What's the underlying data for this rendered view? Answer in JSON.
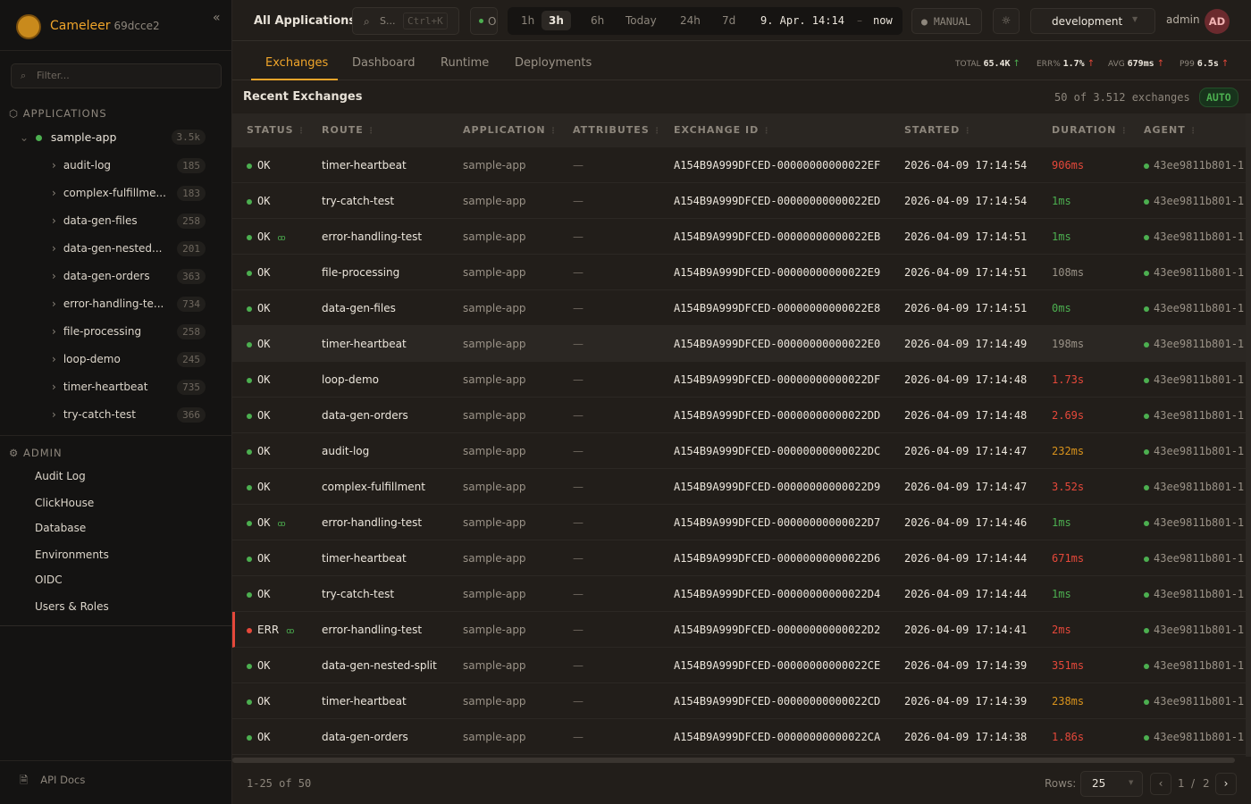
{
  "brand": {
    "name": "Cameleer",
    "version": "69dcce2"
  },
  "sidebar": {
    "filter_placeholder": "Filter...",
    "applications_label": "APPLICATIONS",
    "app": {
      "name": "sample-app",
      "count": "3.5k"
    },
    "routes": [
      {
        "name": "audit-log",
        "count": "185"
      },
      {
        "name": "complex-fulfillme...",
        "count": "183"
      },
      {
        "name": "data-gen-files",
        "count": "258"
      },
      {
        "name": "data-gen-nested...",
        "count": "201"
      },
      {
        "name": "data-gen-orders",
        "count": "363"
      },
      {
        "name": "error-handling-te...",
        "count": "734"
      },
      {
        "name": "file-processing",
        "count": "258"
      },
      {
        "name": "loop-demo",
        "count": "245"
      },
      {
        "name": "timer-heartbeat",
        "count": "735"
      },
      {
        "name": "try-catch-test",
        "count": "366"
      }
    ],
    "admin_label": "ADMIN",
    "admin_items": [
      "Audit Log",
      "ClickHouse",
      "Database",
      "Environments",
      "OIDC",
      "Users & Roles"
    ],
    "api_docs": "API Docs"
  },
  "topbar": {
    "title": "All Applications",
    "search": "S...",
    "shortcut": "Ctrl+K",
    "status_letter": "O",
    "ranges": [
      "1h",
      "3h",
      "6h",
      "Today",
      "24h",
      "7d"
    ],
    "active_range": "3h",
    "range_from": "9. Apr. 14:14",
    "range_sep": "–",
    "range_to": "now",
    "refresh": "MANUAL",
    "environment": "development",
    "user": "admin",
    "avatar": "AD"
  },
  "tabs": [
    "Exchanges",
    "Dashboard",
    "Runtime",
    "Deployments"
  ],
  "kpis": [
    {
      "label": "TOTAL",
      "value": "65.4K",
      "trend": "up",
      "color": "green"
    },
    {
      "label": "ERR%",
      "value": "1.7%",
      "trend": "up",
      "color": "red"
    },
    {
      "label": "AVG",
      "value": "679ms",
      "trend": "up",
      "color": "red"
    },
    {
      "label": "P99",
      "value": "6.5s",
      "trend": "up",
      "color": "red"
    }
  ],
  "panel": {
    "title": "Recent Exchanges",
    "summary": "50 of 3.512 exchanges",
    "mode": "AUTO"
  },
  "columns": [
    "STATUS",
    "ROUTE",
    "APPLICATION",
    "ATTRIBUTES",
    "EXCHANGE ID",
    "STARTED",
    "DURATION",
    "AGENT"
  ],
  "rows": [
    {
      "status": "OK",
      "trace": false,
      "route": "timer-heartbeat",
      "app": "sample-app",
      "attr": "—",
      "id": "A154B9A999DFCED-00000000000022EF",
      "started": "2026-04-09 17:14:54",
      "duration": "906ms",
      "dcolor": "red",
      "agent": "43ee9811b801-1"
    },
    {
      "status": "OK",
      "trace": false,
      "route": "try-catch-test",
      "app": "sample-app",
      "attr": "—",
      "id": "A154B9A999DFCED-00000000000022ED",
      "started": "2026-04-09 17:14:54",
      "duration": "1ms",
      "dcolor": "green",
      "agent": "43ee9811b801-1"
    },
    {
      "status": "OK",
      "trace": true,
      "route": "error-handling-test",
      "app": "sample-app",
      "attr": "—",
      "id": "A154B9A999DFCED-00000000000022EB",
      "started": "2026-04-09 17:14:51",
      "duration": "1ms",
      "dcolor": "green",
      "agent": "43ee9811b801-1"
    },
    {
      "status": "OK",
      "trace": false,
      "route": "file-processing",
      "app": "sample-app",
      "attr": "—",
      "id": "A154B9A999DFCED-00000000000022E9",
      "started": "2026-04-09 17:14:51",
      "duration": "108ms",
      "dcolor": "gray",
      "agent": "43ee9811b801-1"
    },
    {
      "status": "OK",
      "trace": false,
      "route": "data-gen-files",
      "app": "sample-app",
      "attr": "—",
      "id": "A154B9A999DFCED-00000000000022E8",
      "started": "2026-04-09 17:14:51",
      "duration": "0ms",
      "dcolor": "green",
      "agent": "43ee9811b801-1"
    },
    {
      "status": "OK",
      "trace": false,
      "route": "timer-heartbeat",
      "app": "sample-app",
      "attr": "—",
      "id": "A154B9A999DFCED-00000000000022E0",
      "started": "2026-04-09 17:14:49",
      "duration": "198ms",
      "dcolor": "gray",
      "agent": "43ee9811b801-1",
      "hover": true
    },
    {
      "status": "OK",
      "trace": false,
      "route": "loop-demo",
      "app": "sample-app",
      "attr": "—",
      "id": "A154B9A999DFCED-00000000000022DF",
      "started": "2026-04-09 17:14:48",
      "duration": "1.73s",
      "dcolor": "red",
      "agent": "43ee9811b801-1"
    },
    {
      "status": "OK",
      "trace": false,
      "route": "data-gen-orders",
      "app": "sample-app",
      "attr": "—",
      "id": "A154B9A999DFCED-00000000000022DD",
      "started": "2026-04-09 17:14:48",
      "duration": "2.69s",
      "dcolor": "red",
      "agent": "43ee9811b801-1"
    },
    {
      "status": "OK",
      "trace": false,
      "route": "audit-log",
      "app": "sample-app",
      "attr": "—",
      "id": "A154B9A999DFCED-00000000000022DC",
      "started": "2026-04-09 17:14:47",
      "duration": "232ms",
      "dcolor": "orange",
      "agent": "43ee9811b801-1"
    },
    {
      "status": "OK",
      "trace": false,
      "route": "complex-fulfillment",
      "app": "sample-app",
      "attr": "—",
      "id": "A154B9A999DFCED-00000000000022D9",
      "started": "2026-04-09 17:14:47",
      "duration": "3.52s",
      "dcolor": "red",
      "agent": "43ee9811b801-1"
    },
    {
      "status": "OK",
      "trace": true,
      "route": "error-handling-test",
      "app": "sample-app",
      "attr": "—",
      "id": "A154B9A999DFCED-00000000000022D7",
      "started": "2026-04-09 17:14:46",
      "duration": "1ms",
      "dcolor": "green",
      "agent": "43ee9811b801-1"
    },
    {
      "status": "OK",
      "trace": false,
      "route": "timer-heartbeat",
      "app": "sample-app",
      "attr": "—",
      "id": "A154B9A999DFCED-00000000000022D6",
      "started": "2026-04-09 17:14:44",
      "duration": "671ms",
      "dcolor": "red",
      "agent": "43ee9811b801-1"
    },
    {
      "status": "OK",
      "trace": false,
      "route": "try-catch-test",
      "app": "sample-app",
      "attr": "—",
      "id": "A154B9A999DFCED-00000000000022D4",
      "started": "2026-04-09 17:14:44",
      "duration": "1ms",
      "dcolor": "green",
      "agent": "43ee9811b801-1"
    },
    {
      "status": "ERR",
      "trace": true,
      "route": "error-handling-test",
      "app": "sample-app",
      "attr": "—",
      "id": "A154B9A999DFCED-00000000000022D2",
      "started": "2026-04-09 17:14:41",
      "duration": "2ms",
      "dcolor": "red",
      "agent": "43ee9811b801-1"
    },
    {
      "status": "OK",
      "trace": false,
      "route": "data-gen-nested-split",
      "app": "sample-app",
      "attr": "—",
      "id": "A154B9A999DFCED-00000000000022CE",
      "started": "2026-04-09 17:14:39",
      "duration": "351ms",
      "dcolor": "red",
      "agent": "43ee9811b801-1"
    },
    {
      "status": "OK",
      "trace": false,
      "route": "timer-heartbeat",
      "app": "sample-app",
      "attr": "—",
      "id": "A154B9A999DFCED-00000000000022CD",
      "started": "2026-04-09 17:14:39",
      "duration": "238ms",
      "dcolor": "orange",
      "agent": "43ee9811b801-1"
    },
    {
      "status": "OK",
      "trace": false,
      "route": "data-gen-orders",
      "app": "sample-app",
      "attr": "—",
      "id": "A154B9A999DFCED-00000000000022CA",
      "started": "2026-04-09 17:14:38",
      "duration": "1.86s",
      "dcolor": "red",
      "agent": "43ee9811b801-1"
    }
  ],
  "footer": {
    "range": "1-25 of 50",
    "rows_label": "Rows:",
    "rows_value": "25",
    "page": "1",
    "page_sep": "/",
    "pages": "2"
  },
  "colors": {
    "accent": "#f0a52a",
    "ok": "#4caf50",
    "error": "#e5483a",
    "warn": "#d9931c"
  }
}
